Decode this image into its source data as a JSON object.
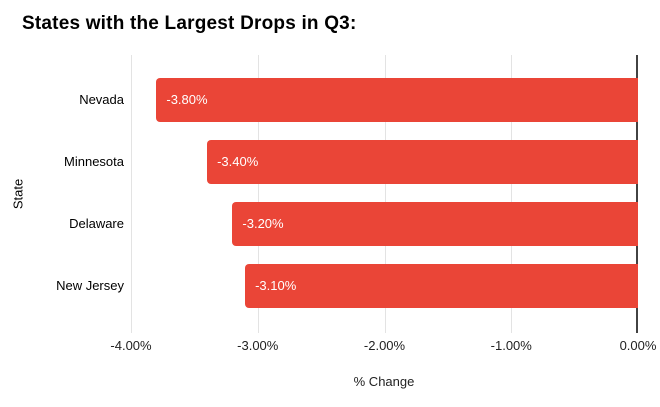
{
  "chart_data": {
    "type": "bar",
    "orientation": "horizontal",
    "title": "States with the Largest Drops in Q3:",
    "categories": [
      "Nevada",
      "Minnesota",
      "Delaware",
      "New Jersey"
    ],
    "values": [
      -3.8,
      -3.4,
      -3.2,
      -3.1
    ],
    "value_labels": [
      "-3.80%",
      "-3.40%",
      "-3.20%",
      "-3.10%"
    ],
    "xlabel": "% Change",
    "ylabel": "State",
    "xlim": [
      -4,
      0
    ],
    "x_tick_values": [
      -4,
      -3,
      -2,
      -1,
      0
    ],
    "x_tick_labels": [
      "-4.00%",
      "-3.00%",
      "-2.00%",
      "-1.00%",
      "0.00%"
    ],
    "legend": "none",
    "grid": true,
    "colors": {
      "bar": "#ea4537",
      "gridline": "#e3e3e3",
      "zero_line": "#424242",
      "title_text": "#000000",
      "axis_text": "#222222",
      "bar_label_text": "#ffffff",
      "background": "#ffffff"
    }
  }
}
